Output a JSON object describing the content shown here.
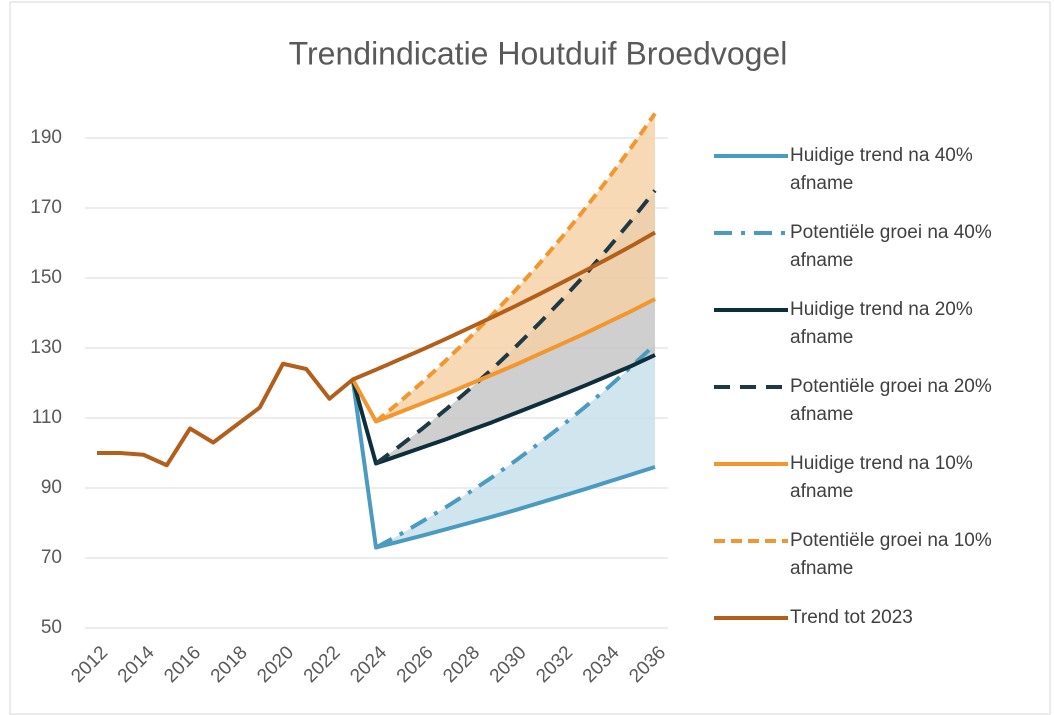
{
  "chart_data": {
    "type": "line",
    "title": "Trendindicatie Houtduif Broedvogel",
    "x": [
      2012,
      2013,
      2014,
      2015,
      2016,
      2017,
      2018,
      2019,
      2020,
      2021,
      2022,
      2023,
      2024,
      2025,
      2026,
      2027,
      2028,
      2029,
      2030,
      2031,
      2032,
      2033,
      2034,
      2035,
      2036
    ],
    "xlim": [
      2012,
      2036
    ],
    "xticks": [
      2012,
      2014,
      2016,
      2018,
      2020,
      2022,
      2024,
      2026,
      2028,
      2030,
      2032,
      2034,
      2036
    ],
    "ylim": [
      50,
      200
    ],
    "yticks": [
      50,
      70,
      90,
      110,
      130,
      150,
      170,
      190
    ],
    "grid": true,
    "legend": "right",
    "series": [
      {
        "name": "Huidige trend na 40% afname",
        "color": "#4a9bbf",
        "dash": "solid",
        "values": [
          null,
          null,
          null,
          null,
          null,
          null,
          null,
          null,
          null,
          null,
          null,
          121,
          73,
          74.7,
          76.4,
          78.2,
          80.0,
          81.8,
          83.7,
          85.7,
          87.7,
          89.7,
          91.8,
          93.9,
          96
        ]
      },
      {
        "name": "Potentiële groei na 40% afname",
        "color": "#4a9bbf",
        "dash": "dashdot",
        "band_color": "#c6dfeb",
        "values": [
          null,
          null,
          null,
          null,
          null,
          null,
          null,
          null,
          null,
          null,
          null,
          null,
          73,
          76.6,
          80.5,
          84.5,
          88.7,
          93.1,
          97.8,
          102.7,
          107.8,
          113.2,
          118.8,
          124.8,
          131
        ]
      },
      {
        "name": "Huidige trend na 20% afname",
        "color": "#0e2e3c",
        "dash": "solid",
        "values": [
          null,
          null,
          null,
          null,
          null,
          null,
          null,
          null,
          null,
          null,
          null,
          121,
          97,
          99.3,
          101.6,
          103.9,
          106.4,
          108.8,
          111.4,
          114.0,
          116.6,
          119.3,
          122.1,
          124.9,
          128
        ]
      },
      {
        "name": "Potentiële groei na 20% afname",
        "color": "#1f3944",
        "dash": "dash",
        "band_color": "#c3c3c3",
        "values": [
          null,
          null,
          null,
          null,
          null,
          null,
          null,
          null,
          null,
          null,
          null,
          null,
          97,
          101.9,
          107.0,
          112.4,
          118.1,
          124.0,
          130.3,
          136.9,
          143.8,
          151.0,
          158.6,
          166.6,
          175
        ]
      },
      {
        "name": "Huidige trend na 10% afname",
        "color": "#f2962e",
        "dash": "solid",
        "values": [
          null,
          null,
          null,
          null,
          null,
          null,
          null,
          null,
          null,
          null,
          null,
          121,
          109,
          111.6,
          114.2,
          116.8,
          119.6,
          122.4,
          125.2,
          128.2,
          131.2,
          134.2,
          137.4,
          140.6,
          144
        ]
      },
      {
        "name": "Potentiële groei na 10% afname",
        "color": "#f2962e",
        "dash": "shortdash",
        "band_color": "#f6cfa2",
        "values": [
          null,
          null,
          null,
          null,
          null,
          null,
          null,
          null,
          null,
          null,
          null,
          null,
          109,
          114.5,
          120.3,
          126.4,
          132.8,
          139.5,
          146.5,
          153.9,
          161.7,
          169.9,
          178.5,
          187.5,
          197
        ]
      },
      {
        "name": "Trend tot 2023",
        "color": "#b35f1c",
        "dash": "solid",
        "values": [
          100,
          100,
          99.5,
          96.5,
          107,
          103,
          108,
          113,
          125.5,
          124,
          115.5,
          121,
          123.8,
          126.7,
          129.6,
          132.6,
          135.7,
          138.8,
          142.0,
          145.3,
          148.7,
          152.1,
          155.6,
          159.2,
          163
        ]
      }
    ]
  }
}
